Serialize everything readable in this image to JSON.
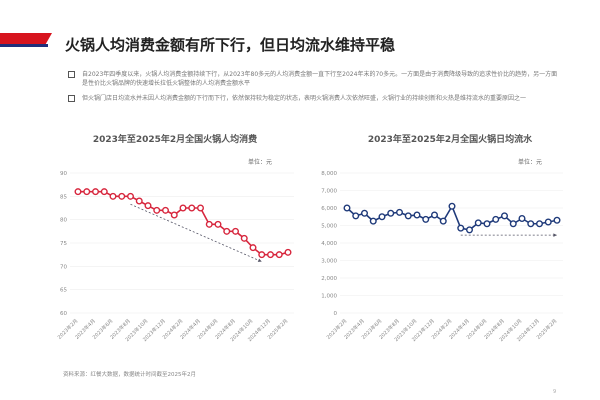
{
  "header": {
    "title": "火锅人均消费金额有所下行，但日均流水维持平稳"
  },
  "bullets": [
    "自2023年四季度以来，火锅人均消费金额持续下行，从2023年80多元的人均消费金额一直下行至2024年末的70多元。一方面是由于消费降级导致的追求性价比的趋势，另一方面是性价比火锅品牌的快速增长拉低火锅整体的人均消费金额水平",
    "但火锅门店日均流水并未因人均消费金额的下行而下行，依然保持较为稳定的状态，表明火锅消费人次依然旺盛，火锅行业的持续创新和火热是维持流水的重要原因之一"
  ],
  "footer": {
    "source": "资料来源：红餐大数据，数据统计时间截至2025年2月",
    "page": "9"
  },
  "chart_data": [
    {
      "type": "line",
      "title": "2023年至2025年2月全国火锅人均消费",
      "unit": "单位：元",
      "color": "#d7263d",
      "ylim": [
        60,
        90
      ],
      "yticks": [
        60,
        65,
        70,
        75,
        80,
        85,
        90
      ],
      "xlabels": [
        "2023年2月",
        "2023年4月",
        "2023年6月",
        "2023年8月",
        "2023年10月",
        "2023年12月",
        "2024年2月",
        "2024年4月",
        "2024年6月",
        "2024年8月",
        "2024年10月",
        "2024年12月",
        "2025年2月"
      ],
      "values": [
        86,
        86,
        86,
        86,
        85,
        85,
        85,
        84,
        83,
        82,
        82,
        81,
        82.5,
        82.5,
        82.5,
        79,
        79,
        77.5,
        77.5,
        76,
        74,
        72.5,
        72.5,
        72.5,
        73
      ],
      "trend": {
        "from_index": 6,
        "from_value": 83.3,
        "to_index": 21,
        "to_value": 71
      }
    },
    {
      "type": "line",
      "title": "2023年至2025年2月全国火锅日均流水",
      "unit": "单位：元",
      "color": "#1f3a7a",
      "ylim": [
        0,
        8000
      ],
      "yticks": [
        0,
        1000,
        2000,
        3000,
        4000,
        5000,
        6000,
        7000,
        8000
      ],
      "yticklabels": [
        "0",
        "1,000",
        "2,000",
        "3,000",
        "4,000",
        "5,000",
        "6,000",
        "7,000",
        "8,000"
      ],
      "xlabels": [
        "2023年2月",
        "2023年4月",
        "2023年6月",
        "2023年8月",
        "2023年10月",
        "2023年12月",
        "2024年2月",
        "2024年4月",
        "2024年6月",
        "2024年8月",
        "2024年10月",
        "2024年12月",
        "2025年2月"
      ],
      "values": [
        6000,
        5550,
        5700,
        5250,
        5500,
        5700,
        5750,
        5550,
        5600,
        5350,
        5600,
        5250,
        6100,
        4850,
        4750,
        5150,
        5100,
        5350,
        5550,
        5100,
        5400,
        5100,
        5100,
        5200,
        5300
      ],
      "trend": {
        "from_index": 13,
        "from_value": 4450,
        "to_index": 24,
        "to_value": 4450
      }
    }
  ]
}
